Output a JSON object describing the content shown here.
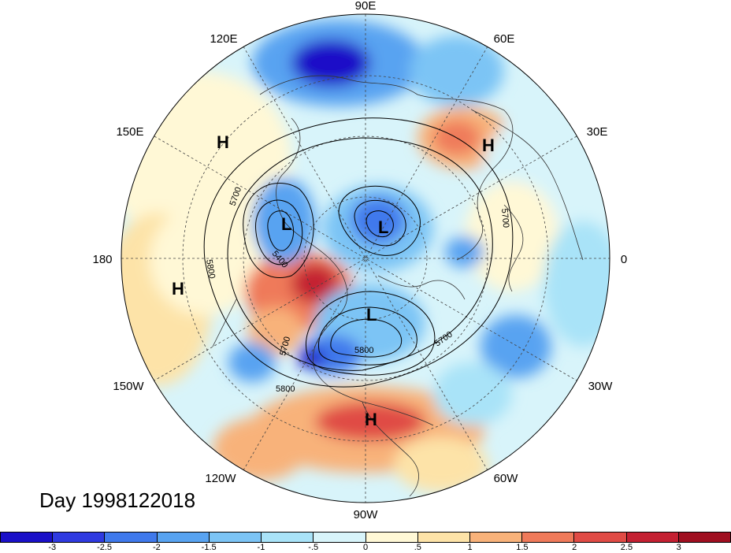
{
  "title": "Day 1998122018",
  "map": {
    "projection": "polar-stereographic-north",
    "center_lon_up": "90E",
    "longitude_labels": [
      "90E",
      "120E",
      "60E",
      "150E",
      "30E",
      "180",
      "0",
      "150W",
      "30W",
      "120W",
      "60W",
      "90W"
    ],
    "contour_labels": [
      "5700",
      "5800",
      "5400",
      "5700",
      "5700",
      "5800",
      "5700",
      "5800"
    ],
    "pressure_centers": [
      "H",
      "H",
      "L",
      "L",
      "H",
      "L",
      "H"
    ]
  },
  "colorbar": {
    "tick_labels": [
      "-3",
      "-2.5",
      "-2",
      "-1.5",
      "-1",
      "-.5",
      "0",
      ".5",
      "1",
      "1.5",
      "2",
      "2.5",
      "3"
    ],
    "colors": [
      "#1a10c8",
      "#2f3ae0",
      "#3f79ec",
      "#58a3f1",
      "#7cc4f5",
      "#a9e3f8",
      "#d8f4fa",
      "#fff8d6",
      "#fde3a8",
      "#f8b27a",
      "#ef7a5a",
      "#e04b45",
      "#c42032",
      "#a00f20"
    ]
  }
}
